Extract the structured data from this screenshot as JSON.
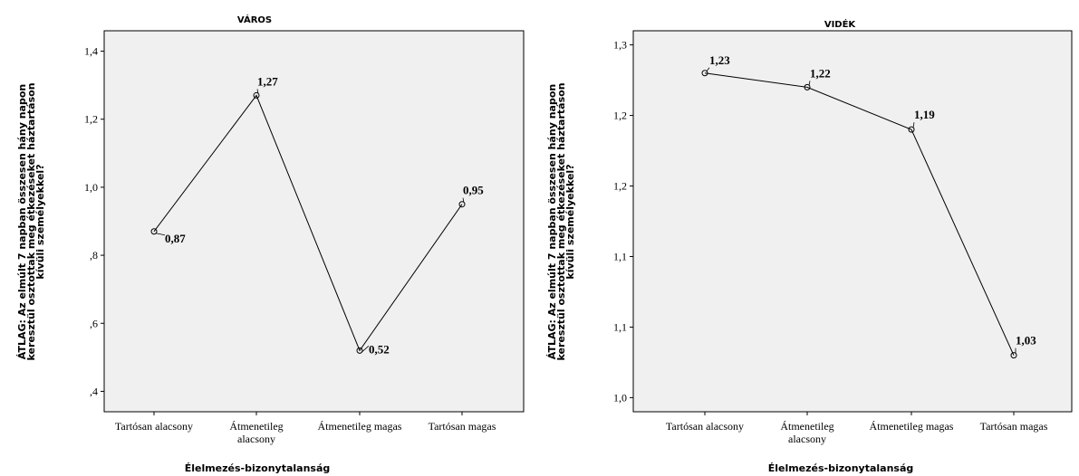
{
  "chart_data": [
    {
      "type": "line",
      "title": "VÁROS",
      "xlabel": "Élelmezés-bizonytalanság",
      "ylabel": [
        "ÁTLAG: Az elmúlt 7 napban összesen hány napon",
        "keresztül osztottak meg étkezéseket háztartáson",
        "kívüli személyekkel?"
      ],
      "categories": [
        [
          "Tartósan alacsony"
        ],
        [
          "Átmenetileg",
          "alacsony"
        ],
        [
          "Átmenetileg magas"
        ],
        [
          "Tartósan magas"
        ]
      ],
      "values": [
        0.87,
        1.27,
        0.52,
        0.95
      ],
      "data_labels": [
        "0,87",
        "1,27",
        "0,52",
        "0,95"
      ],
      "yticks": [
        {
          "value": 0.4,
          "label": ",4"
        },
        {
          "value": 0.6,
          "label": ",6"
        },
        {
          "value": 0.8,
          "label": ",8"
        },
        {
          "value": 1.0,
          "label": "1,0"
        },
        {
          "value": 1.2,
          "label": "1,2"
        },
        {
          "value": 1.4,
          "label": "1,4"
        }
      ],
      "ylim": [
        0.34,
        1.46
      ]
    },
    {
      "type": "line",
      "title": "VIDÉK",
      "xlabel": "Élelmezés-bizonytalanság",
      "ylabel": [
        "ÁTLAG: Az elmúlt 7 napban összesen hány napon",
        "keresztül osztottak meg étkezéseket háztartáson",
        "kívüli személyekkel?"
      ],
      "categories": [
        [
          "Tartósan alacsony"
        ],
        [
          "Átmenetileg",
          "alacsony"
        ],
        [
          "Átmenetileg magas"
        ],
        [
          "Tartósan magas"
        ]
      ],
      "values": [
        1.23,
        1.22,
        1.19,
        1.03
      ],
      "data_labels": [
        "1,23",
        "1,22",
        "1,19",
        "1,03"
      ],
      "yticks": [
        {
          "value": 1.0,
          "label": "1,0"
        },
        {
          "value": 1.05,
          "label": "1,1"
        },
        {
          "value": 1.1,
          "label": "1,1"
        },
        {
          "value": 1.15,
          "label": "1,2"
        },
        {
          "value": 1.2,
          "label": "1,2"
        },
        {
          "value": 1.25,
          "label": "1,3"
        }
      ],
      "ylim": [
        0.99,
        1.26
      ]
    }
  ]
}
